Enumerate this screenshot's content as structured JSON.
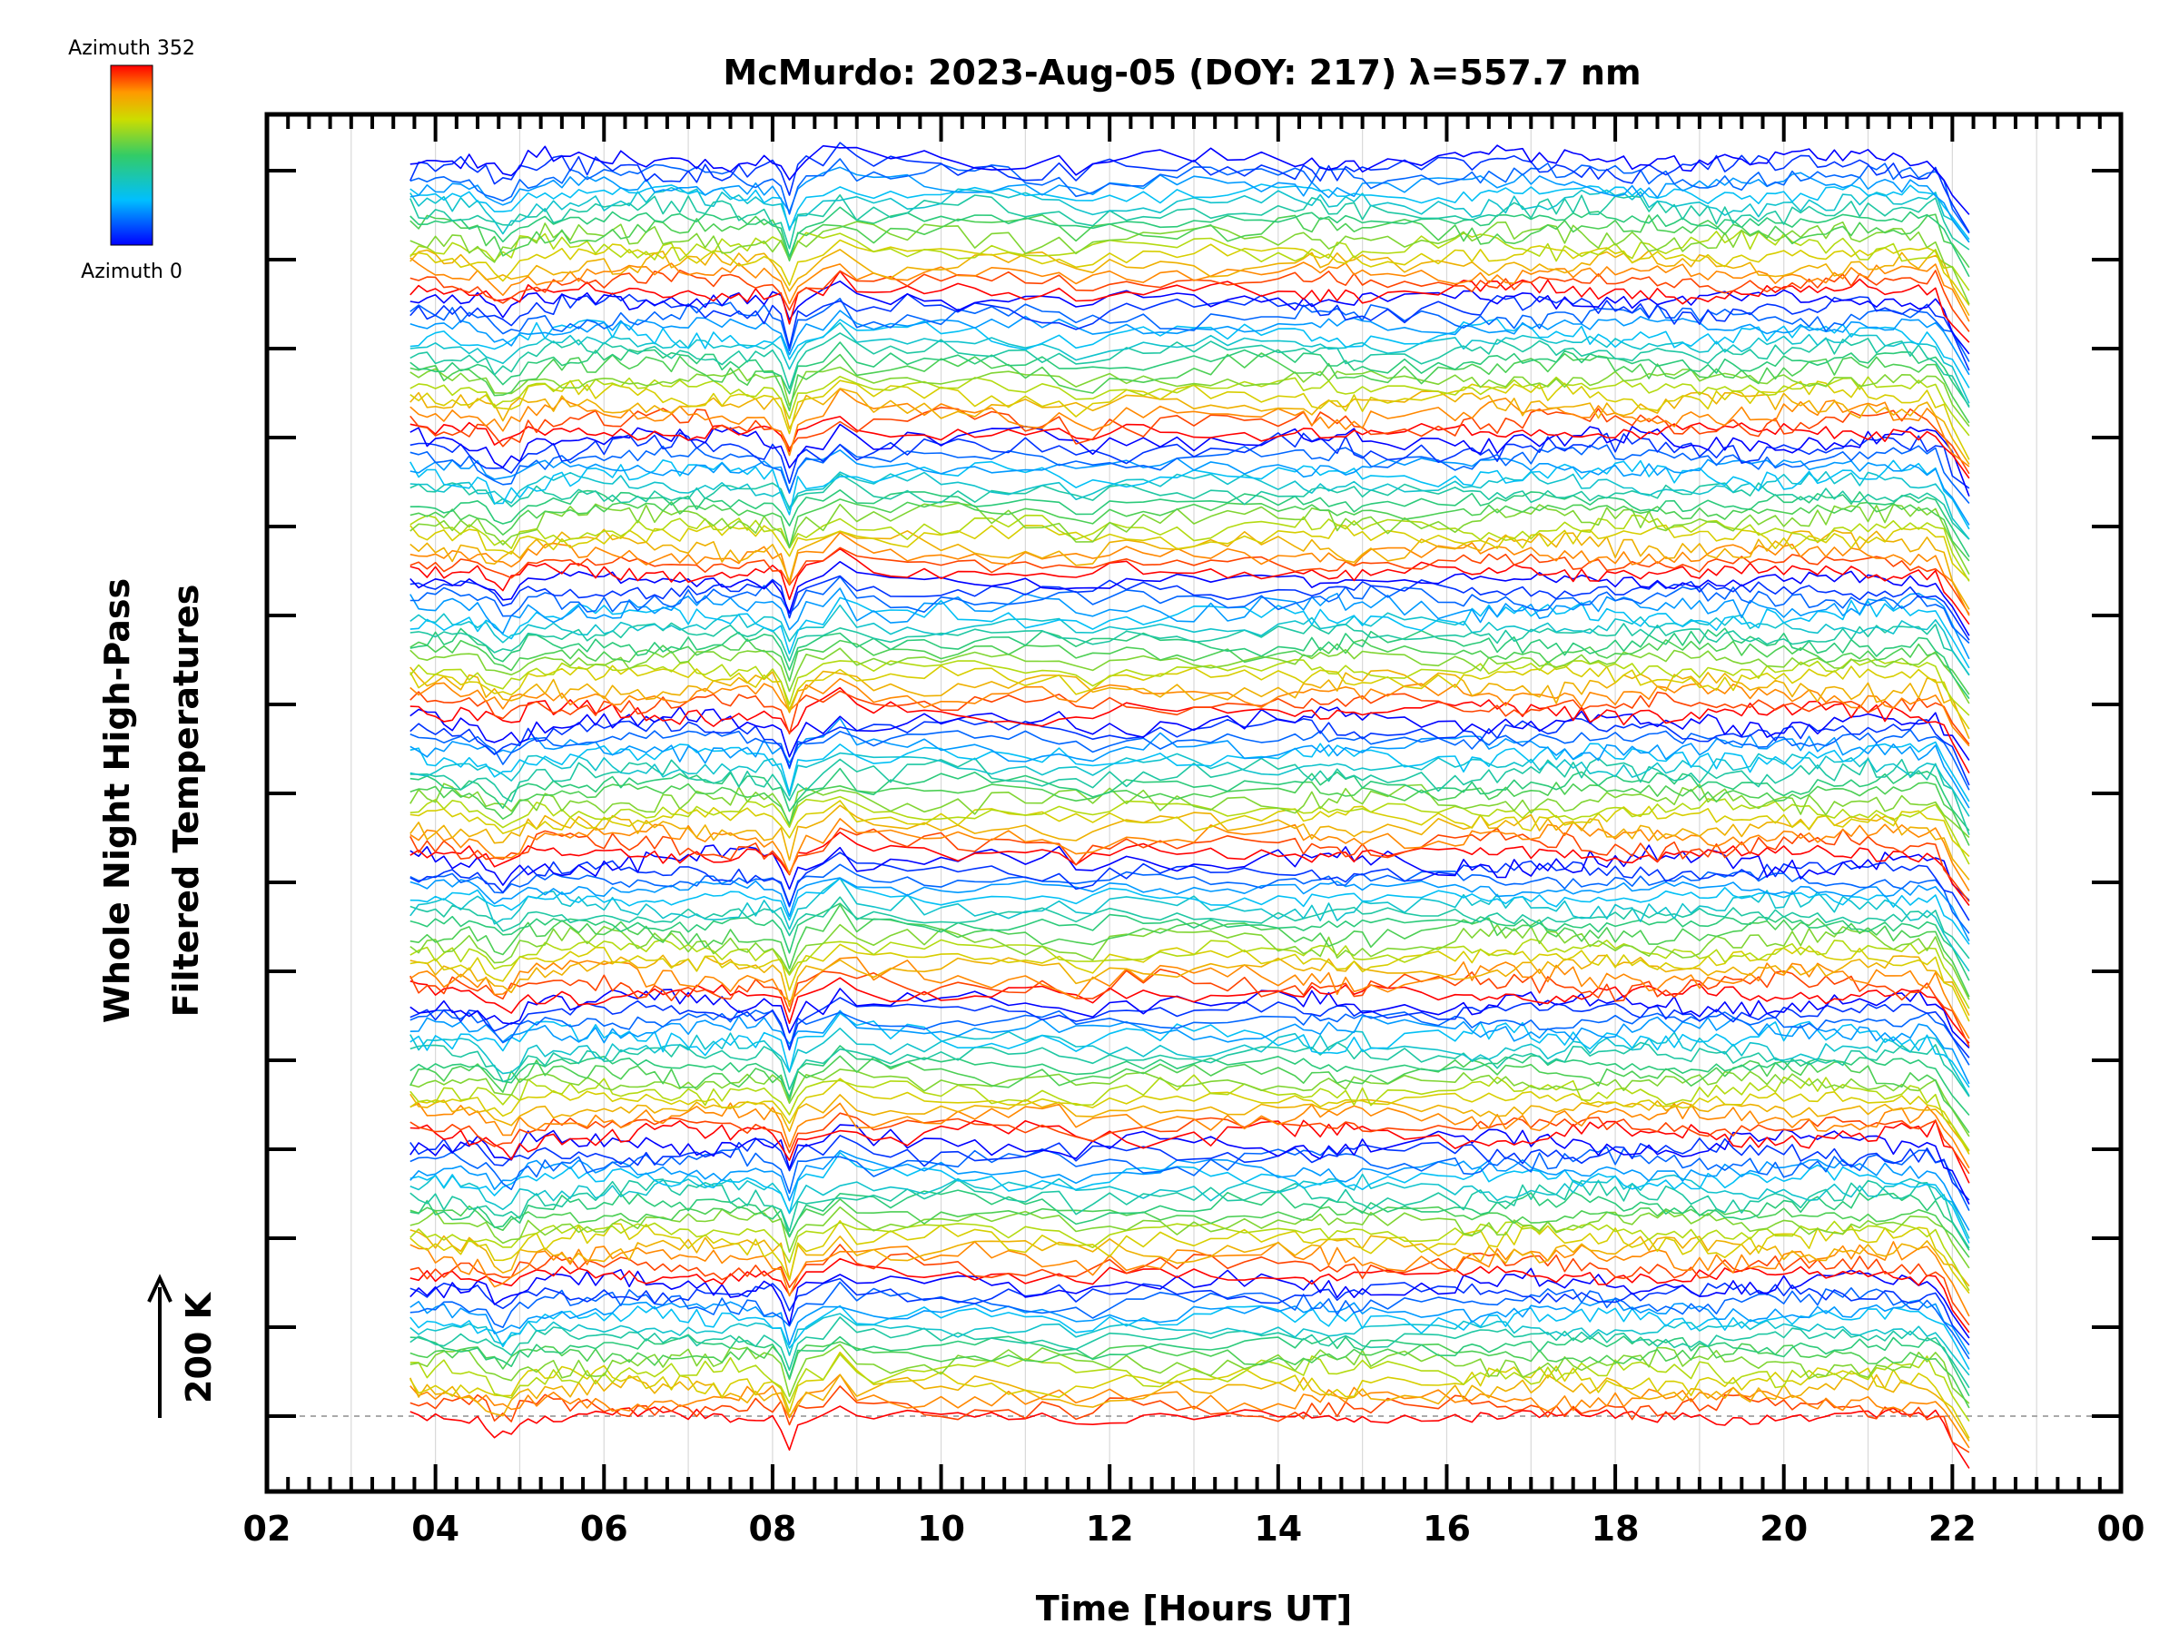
{
  "chart_data": {
    "type": "line",
    "title": "McMurdo: 2023-Aug-05 (DOY: 217) λ=557.7 nm",
    "xlabel": "Time [Hours UT]",
    "ylabel_line1": "Whole Night High-Pass",
    "ylabel_line2": "Filtered Temperatures",
    "scale_label": "200 K",
    "x_ticks": [
      "02",
      "04",
      "06",
      "08",
      "10",
      "12",
      "14",
      "16",
      "18",
      "20",
      "22",
      "00"
    ],
    "x_tick_hours": [
      2,
      4,
      6,
      8,
      10,
      12,
      14,
      16,
      18,
      20,
      22,
      24
    ],
    "xlim": [
      2,
      24
    ],
    "colorbar": {
      "top_label": "Azimuth 352",
      "bottom_label": "Azimuth 0",
      "min": 0,
      "max": 352
    },
    "data_range_hours": [
      3.7,
      22.2
    ],
    "series_count": 144,
    "series_azimuth_step": 22,
    "group_count": 9,
    "common_features_hours": [
      4.8,
      8.2,
      8.8,
      11.7
    ],
    "baseline": 0,
    "colors": {
      "axis": "#000000",
      "grid": "#d9d9d9",
      "baseline": "#aaaaaa"
    }
  }
}
